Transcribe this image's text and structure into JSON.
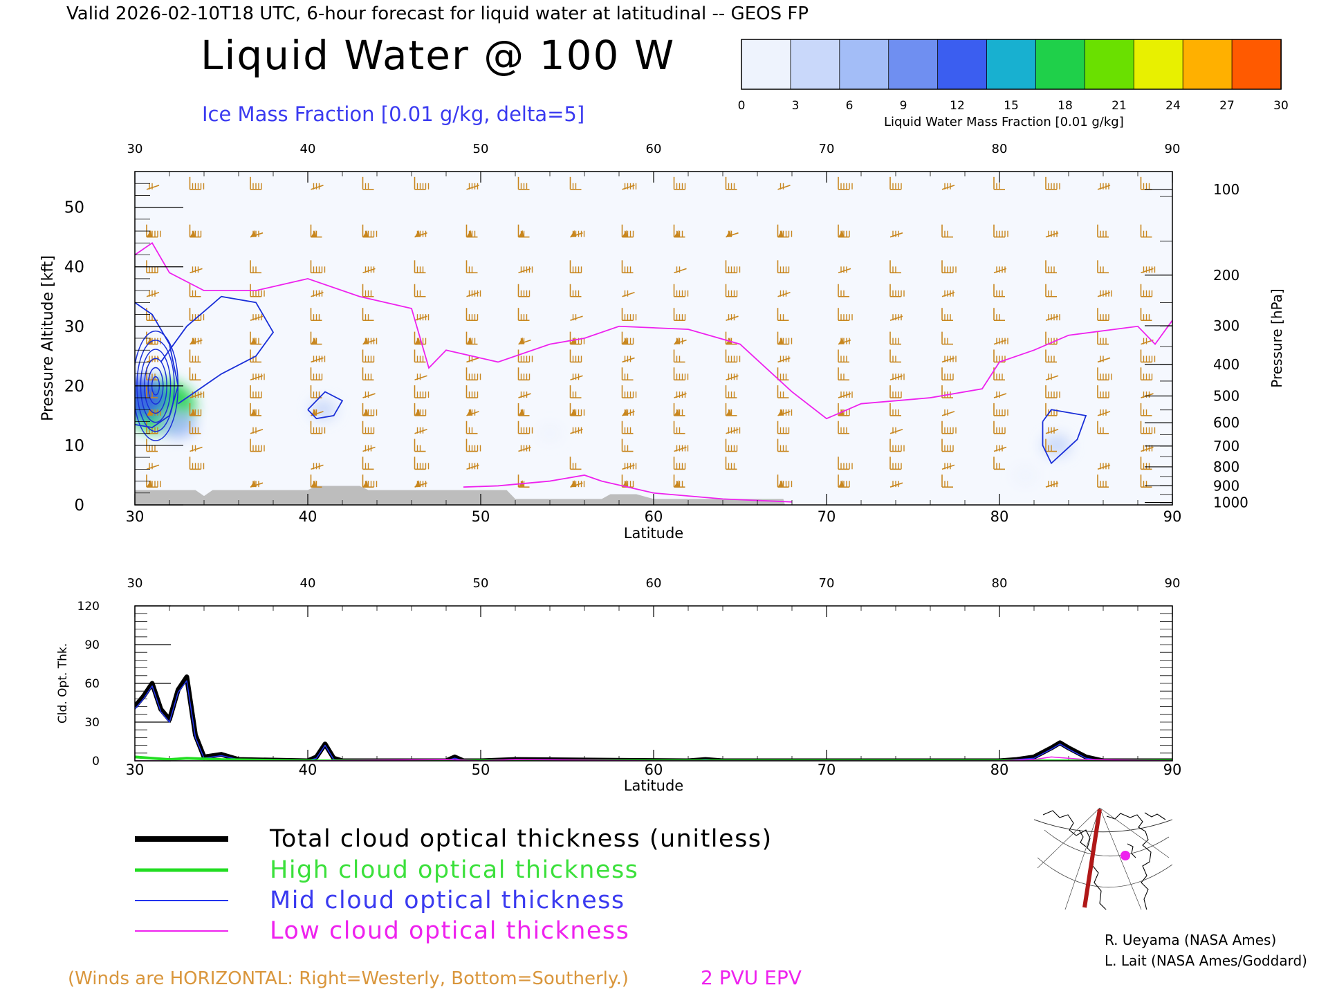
{
  "header": {
    "valid_line": "Valid 2026-02-10T18 UTC, 6-hour forecast for liquid water at latitudinal -- GEOS FP",
    "title": "Liquid Water @ 100 W",
    "subtitle": "Ice Mass Fraction [0.01 g/kg, delta=5]"
  },
  "colorbar": {
    "label": "Liquid Water Mass Fraction [0.01 g/kg]",
    "ticks": [
      "0",
      "3",
      "6",
      "9",
      "12",
      "15",
      "18",
      "21",
      "24",
      "27",
      "30"
    ],
    "colors": [
      "#eef3fd",
      "#c9d8fa",
      "#a3bdf7",
      "#6f8ff1",
      "#3b5ef0",
      "#18b0d0",
      "#1fd04a",
      "#6ae000",
      "#e8f000",
      "#ffb000",
      "#ff5a00"
    ]
  },
  "chart_data": [
    {
      "type": "heatmap",
      "xlabel": "Latitude",
      "ylabel": "Pressure Altitude [kft]",
      "y2label": "Pressure [hPa]",
      "xlim": [
        30,
        90
      ],
      "ylim": [
        0,
        56
      ],
      "x_ticks": [
        "30",
        "40",
        "50",
        "60",
        "70",
        "80",
        "90"
      ],
      "y_ticks": [
        "0",
        "10",
        "20",
        "30",
        "40",
        "50"
      ],
      "pressure_ticks": [
        "100",
        "200",
        "300",
        "400",
        "500",
        "600",
        "700",
        "800",
        "900",
        "1000"
      ],
      "pressure_tick_kft": [
        53.0,
        38.6,
        30.1,
        23.6,
        18.3,
        13.8,
        9.9,
        6.4,
        3.2,
        0.4
      ],
      "liquid_water_blobs": [
        {
          "lat": 31.5,
          "kft": 16.5,
          "value": 18
        },
        {
          "lat": 30.3,
          "kft": 18.0,
          "value": 12
        },
        {
          "lat": 32.5,
          "kft": 13.5,
          "value": 6
        },
        {
          "lat": 40.9,
          "kft": 16.0,
          "value": 3
        },
        {
          "lat": 83.3,
          "kft": 10.0,
          "value": 4
        },
        {
          "lat": 81.5,
          "kft": 5.0,
          "value": 2
        },
        {
          "lat": 54.0,
          "kft": 12.0,
          "value": 1
        }
      ],
      "epv_2pvu_line": [
        [
          30,
          42
        ],
        [
          31,
          44
        ],
        [
          32,
          39
        ],
        [
          34,
          36
        ],
        [
          37,
          36
        ],
        [
          40,
          38
        ],
        [
          43,
          35
        ],
        [
          46,
          33
        ],
        [
          47,
          23
        ],
        [
          48,
          26
        ],
        [
          51,
          24
        ],
        [
          54,
          27
        ],
        [
          56,
          28
        ],
        [
          58,
          30
        ],
        [
          62,
          29.5
        ],
        [
          65,
          27
        ],
        [
          68,
          19
        ],
        [
          70,
          14.5
        ],
        [
          72,
          17
        ],
        [
          76,
          18
        ],
        [
          79,
          19.5
        ],
        [
          80,
          24
        ],
        [
          82,
          26
        ],
        [
          84,
          28.5
        ],
        [
          88,
          30
        ],
        [
          89,
          27
        ],
        [
          90,
          31
        ]
      ],
      "epv_low_line": [
        [
          49,
          3
        ],
        [
          51,
          3.2
        ],
        [
          54,
          4
        ],
        [
          56,
          5
        ],
        [
          57,
          4
        ],
        [
          60,
          2
        ],
        [
          64,
          1
        ],
        [
          68,
          0.5
        ]
      ],
      "ice_contours": [
        [
          [
            30,
            34
          ],
          [
            31,
            32
          ],
          [
            32,
            27
          ],
          [
            32.5,
            20
          ],
          [
            32,
            15
          ],
          [
            31,
            13
          ],
          [
            30,
            13.5
          ]
        ],
        [
          [
            31.5,
            24
          ],
          [
            33,
            30
          ],
          [
            35,
            35
          ],
          [
            37,
            34
          ],
          [
            38,
            29
          ],
          [
            37,
            25
          ],
          [
            35,
            22
          ],
          [
            33.5,
            19
          ],
          [
            32.5,
            17
          ]
        ],
        [
          [
            40,
            16
          ],
          [
            41,
            19
          ],
          [
            42,
            17.5
          ],
          [
            41.5,
            15
          ],
          [
            40.5,
            14.5
          ],
          [
            40,
            16
          ]
        ],
        [
          [
            82.5,
            14
          ],
          [
            83,
            16
          ],
          [
            85,
            15
          ],
          [
            84.5,
            11
          ],
          [
            83,
            7
          ],
          [
            82.5,
            10
          ],
          [
            82.5,
            14
          ]
        ]
      ],
      "ground": [
        [
          30,
          2.5
        ],
        [
          33.5,
          2.5
        ],
        [
          34,
          1.5
        ],
        [
          34.5,
          2.5
        ],
        [
          40,
          2.5
        ],
        [
          40.5,
          3.2
        ],
        [
          43,
          3.2
        ],
        [
          43.5,
          2.5
        ],
        [
          51.5,
          2.5
        ],
        [
          52,
          1
        ],
        [
          57,
          1
        ],
        [
          57.5,
          1.8
        ],
        [
          59,
          1.8
        ],
        [
          60,
          1
        ],
        [
          67.5,
          1
        ],
        [
          67.6,
          0
        ]
      ],
      "wind_columns_lat": [
        31,
        33.5,
        37,
        40.5,
        43.5,
        46.5,
        49.5,
        52.5,
        55.5,
        58.5,
        61.5,
        64.5,
        67.5,
        71,
        74,
        77,
        80,
        83,
        86,
        88.5
      ]
    },
    {
      "type": "line",
      "xlabel": "Latitude",
      "ylabel": "Cld. Opt. Thk.",
      "xlim": [
        30,
        90
      ],
      "ylim": [
        0,
        120
      ],
      "x_ticks": [
        "30",
        "40",
        "50",
        "60",
        "70",
        "80",
        "90"
      ],
      "y_ticks": [
        "0",
        "30",
        "60",
        "90",
        "120"
      ],
      "series": [
        {
          "name": "Total cloud optical thickness (unitless)",
          "color": "#000000",
          "x": [
            30,
            30.5,
            31,
            31.5,
            32,
            32.5,
            33,
            33.5,
            34,
            35,
            36,
            40,
            40.5,
            41,
            41.5,
            42,
            48,
            48.5,
            49,
            50,
            52,
            62,
            63,
            64,
            80,
            81,
            82,
            83,
            83.5,
            84,
            85,
            86,
            90
          ],
          "values": [
            42,
            50,
            60,
            40,
            32,
            55,
            65,
            20,
            3,
            5,
            1,
            0,
            3,
            13,
            2,
            0,
            0,
            3,
            0,
            0,
            1,
            0,
            1,
            0,
            0,
            1,
            3,
            10,
            14,
            10,
            3,
            0,
            0
          ]
        },
        {
          "name": "High cloud optical thickness",
          "color": "#22dd22",
          "x": [
            30,
            31,
            32,
            33,
            35,
            40,
            50,
            60,
            70,
            80,
            90
          ],
          "values": [
            3,
            2,
            1,
            2,
            1,
            0,
            0,
            0,
            0,
            0,
            0
          ]
        },
        {
          "name": "Mid cloud optical thickness",
          "color": "#2233ee",
          "x": [
            30,
            30.5,
            31,
            31.5,
            32,
            32.5,
            33,
            33.5,
            34,
            35,
            36,
            40,
            40.5,
            41,
            41.5,
            42,
            48,
            48.5,
            49,
            50,
            52,
            62,
            63,
            64,
            80,
            81,
            82,
            83,
            83.5,
            84,
            85,
            86,
            90
          ],
          "values": [
            40,
            48,
            58,
            38,
            30,
            53,
            62,
            18,
            2,
            4,
            1,
            0,
            2,
            12,
            1,
            0,
            0,
            2,
            0,
            0,
            1,
            0,
            1,
            0,
            0,
            1,
            2,
            9,
            13,
            9,
            2,
            0,
            0
          ]
        },
        {
          "name": "Low cloud optical thickness",
          "color": "#ee22ee",
          "x": [
            30,
            40,
            48,
            50,
            52,
            60,
            70,
            80,
            82,
            83,
            85,
            90
          ],
          "values": [
            0,
            0,
            1,
            0,
            1,
            0,
            0,
            0,
            1,
            3,
            1,
            0
          ]
        }
      ]
    }
  ],
  "footer": {
    "winds_note": "(Winds are HORIZONTAL: Right=Westerly, Bottom=Southerly.)",
    "epv_label": "2 PVU EPV",
    "credit_1": "R. Ueyama (NASA Ames)",
    "credit_2": "L. Lait (NASA Ames/Goddard)"
  },
  "colors": {
    "wind": "#c8861e",
    "epv": "#ee22ee",
    "ice": "#1a2fd8",
    "ground": "#bdbdbd",
    "winds_note": "#d9963c"
  },
  "locator_map": {
    "marker_color": "#ee22ee",
    "track_color": "#b01818"
  }
}
